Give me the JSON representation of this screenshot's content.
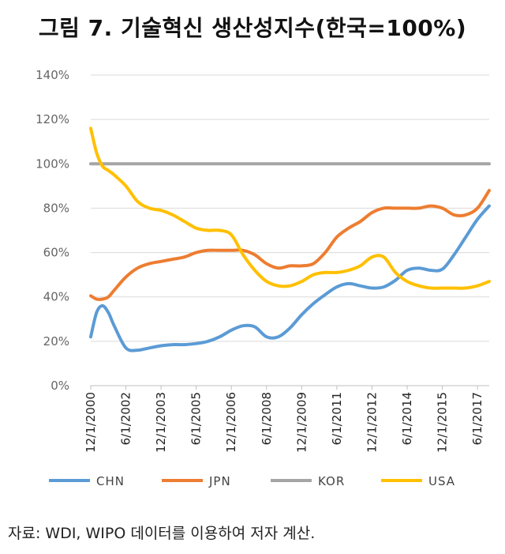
{
  "title": "그림 7. 기술혁신 생산성지수(한국=100%)",
  "source": "자료: WDI, WIPO 데이터를 이용하여 저자 계산.",
  "colors": {
    "CHN": "#5b9bd5",
    "JPN": "#ed7d31",
    "KOR": "#a5a5a5",
    "USA": "#ffc000",
    "grid": "#d9d9d9"
  },
  "chart_data": {
    "type": "line",
    "title": "그림 7. 기술혁신 생산성지수(한국=100%)",
    "xlabel": "",
    "ylabel": "",
    "ylim": [
      0,
      140
    ],
    "y_ticks": [
      "0%",
      "20%",
      "40%",
      "60%",
      "80%",
      "100%",
      "120%",
      "140%"
    ],
    "x_ticks": [
      "12/1/2000",
      "6/1/2002",
      "12/1/2003",
      "6/1/2005",
      "12/1/2006",
      "6/1/2008",
      "12/1/2009",
      "6/1/2011",
      "12/1/2012",
      "6/1/2014",
      "12/1/2015",
      "6/1/2017"
    ],
    "x": [
      "2000-12",
      "2001-03",
      "2001-06",
      "2001-09",
      "2001-12",
      "2002-06",
      "2002-12",
      "2003-06",
      "2003-12",
      "2004-06",
      "2004-12",
      "2005-06",
      "2005-12",
      "2006-06",
      "2006-12",
      "2007-06",
      "2007-12",
      "2008-06",
      "2008-12",
      "2009-06",
      "2009-12",
      "2010-06",
      "2010-12",
      "2011-06",
      "2011-12",
      "2012-06",
      "2012-12",
      "2013-06",
      "2013-12",
      "2014-06",
      "2014-12",
      "2015-06",
      "2015-12",
      "2016-06",
      "2016-12",
      "2017-06",
      "2017-12"
    ],
    "series": [
      {
        "name": "CHN",
        "values": [
          22,
          33,
          36,
          33,
          27,
          17,
          16,
          17,
          18,
          18.5,
          18.5,
          19,
          20,
          22,
          25,
          27,
          26.5,
          22,
          22,
          26,
          32,
          37,
          41,
          44.5,
          46,
          45,
          44,
          44.5,
          47.5,
          52,
          53,
          52,
          52.5,
          59,
          67,
          75,
          81
        ]
      },
      {
        "name": "JPN",
        "values": [
          40.5,
          39,
          39,
          40,
          43,
          49,
          53,
          55,
          56,
          57,
          58,
          60,
          61,
          61,
          61,
          61,
          59,
          55,
          53,
          54,
          54,
          55,
          60,
          67,
          71,
          74,
          78,
          80,
          80,
          80,
          80,
          81,
          80,
          77,
          77,
          80,
          88
        ]
      },
      {
        "name": "KOR",
        "values": [
          100,
          100,
          100,
          100,
          100,
          100,
          100,
          100,
          100,
          100,
          100,
          100,
          100,
          100,
          100,
          100,
          100,
          100,
          100,
          100,
          100,
          100,
          100,
          100,
          100,
          100,
          100,
          100,
          100,
          100,
          100,
          100,
          100,
          100,
          100,
          100,
          100
        ]
      },
      {
        "name": "USA",
        "values": [
          116,
          105,
          99,
          97,
          95,
          90,
          83,
          80,
          79,
          77,
          74,
          71,
          70,
          70,
          68,
          59,
          52,
          47,
          45,
          45,
          47,
          50,
          51,
          51,
          52,
          54,
          58,
          58,
          51,
          47,
          45,
          44,
          44,
          44,
          44,
          45,
          47
        ]
      }
    ],
    "legend": [
      "CHN",
      "JPN",
      "KOR",
      "USA"
    ],
    "legend_position": "bottom",
    "grid": true
  }
}
